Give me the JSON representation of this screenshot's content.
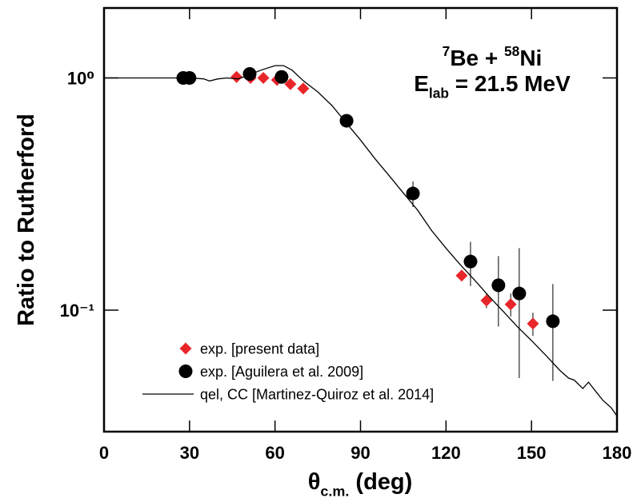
{
  "chart_data": {
    "type": "scatter",
    "xlabel": [
      {
        "text": "θ"
      },
      {
        "text": "c.m.",
        "sub": true
      },
      {
        "text": " (deg)"
      }
    ],
    "ylabel": "Ratio to Rutherford",
    "annotation": [
      [
        {
          "text": "7",
          "sup": true
        },
        {
          "text": "Be + "
        },
        {
          "text": "58",
          "sup": true
        },
        {
          "text": "Ni"
        }
      ],
      [
        {
          "text": "E"
        },
        {
          "text": "lab",
          "sub": true
        },
        {
          "text": " = 21.5 MeV"
        }
      ]
    ],
    "xlim": [
      0,
      180
    ],
    "xticks": [
      0,
      30,
      60,
      90,
      120,
      150,
      180
    ],
    "ylim": [
      0.03,
      2
    ],
    "yscale": "log",
    "yticks": [
      {
        "value": 1,
        "label": "10⁰"
      },
      {
        "value": 0.1,
        "label": "10⁻¹"
      }
    ],
    "legend": "lower left",
    "series": [
      {
        "name": "exp. [present data]",
        "color": "#e8262a",
        "marker": "diamond",
        "x": [
          46.5,
          51.4,
          55.9,
          60.7,
          65.4,
          69.9,
          125.5,
          134.2,
          142.7,
          150.5
        ],
        "values": [
          1.01,
          1.0,
          1.0,
          0.98,
          0.94,
          0.9,
          0.141,
          0.11,
          0.106,
          0.0875
        ],
        "errors": [
          null,
          null,
          null,
          null,
          null,
          null,
          0.006,
          0.008,
          0.012,
          0.01
        ]
      },
      {
        "name": "exp. [Aguilera et al. 2009]",
        "color": "#000000",
        "marker": "circle",
        "x": [
          27.8,
          30.0,
          51.1,
          62.3,
          85.1,
          108.4,
          128.6,
          138.4,
          145.7,
          157.5
        ],
        "values": [
          1.0,
          1.0,
          1.04,
          1.01,
          0.654,
          0.318,
          0.162,
          0.128,
          0.118,
          0.0896
        ],
        "errors": [
          null,
          null,
          null,
          null,
          null,
          0.04,
          0.035,
          0.043,
          0.067,
          0.04
        ]
      },
      {
        "name": "qel, CC [Martinez-Quiroz et al. 2014]",
        "color": "#000000",
        "marker": "line",
        "x": [
          0,
          10,
          20,
          30,
          35,
          37,
          40,
          43,
          47,
          50,
          55,
          60,
          63,
          66,
          70,
          75,
          80,
          85,
          90,
          95,
          100,
          105,
          110,
          115,
          120,
          125,
          130,
          135,
          140,
          145,
          150,
          155,
          160,
          163,
          165,
          168,
          170,
          173,
          175,
          178,
          180
        ],
        "values": [
          1,
          1,
          1,
          1,
          0.99,
          0.97,
          0.99,
          1.0,
          0.99,
          1.02,
          1.08,
          1.13,
          1.13,
          1.08,
          0.97,
          0.87,
          0.76,
          0.64,
          0.54,
          0.45,
          0.38,
          0.32,
          0.27,
          0.22,
          0.185,
          0.157,
          0.135,
          0.115,
          0.099,
          0.085,
          0.074,
          0.064,
          0.055,
          0.051,
          0.05,
          0.046,
          0.049,
          0.044,
          0.041,
          0.038,
          0.035
        ]
      }
    ]
  }
}
